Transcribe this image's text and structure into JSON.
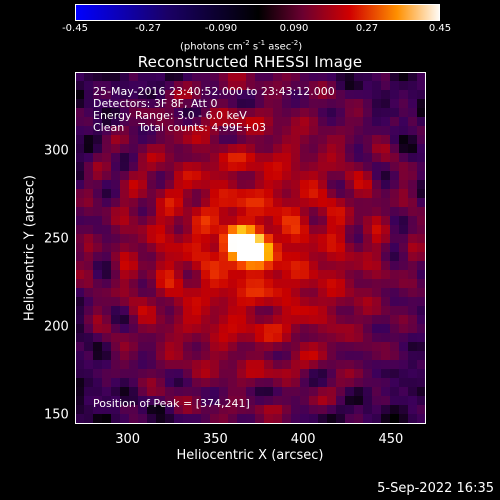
{
  "chart_data": {
    "type": "heatmap",
    "title": "Reconstructed RHESSI Image",
    "xlabel": "Heliocentric X (arcsec)",
    "ylabel": "Heliocentric Y (arcsec)",
    "xlim": [
      270,
      470
    ],
    "ylim": [
      145,
      345
    ],
    "xticks": [
      "300",
      "350",
      "400",
      "450"
    ],
    "xtick_values": [
      300,
      350,
      400,
      450
    ],
    "yticks": [
      "150",
      "200",
      "250",
      "300"
    ],
    "ytick_values": [
      150,
      200,
      250,
      300
    ],
    "colorbar": {
      "min": -0.45,
      "max": 0.45,
      "ticks": [
        "-0.45",
        "-0.27",
        "-0.090",
        "0.090",
        "0.27",
        "0.45"
      ],
      "units_prefix": "(photons cm",
      "units_exp1": "-2",
      "units_mid": " s",
      "units_exp2": "-1",
      "units_end": " asec",
      "units_exp3": "-2",
      "units_close": ")"
    },
    "info_lines": [
      "25-May-2016 23:40:52.000 to 23:43:12.000",
      "Detectors: 3F 8F, Att 0",
      "Energy Range: 3.0 - 6.0 keV",
      "Clean    Total counts: 4.99E+03"
    ],
    "peak_label": "Position of Peak = [374,241]",
    "peak_position": [
      374,
      241
    ],
    "sources": [
      {
        "x": 364,
        "y": 248,
        "peak": 0.42
      },
      {
        "x": 372,
        "y": 243,
        "peak": 0.45
      }
    ],
    "colormap": "rainbow-hot (blue-black-purple-red-yellow-white)"
  },
  "footer": {
    "date": "5-Sep-2022 16:35"
  }
}
